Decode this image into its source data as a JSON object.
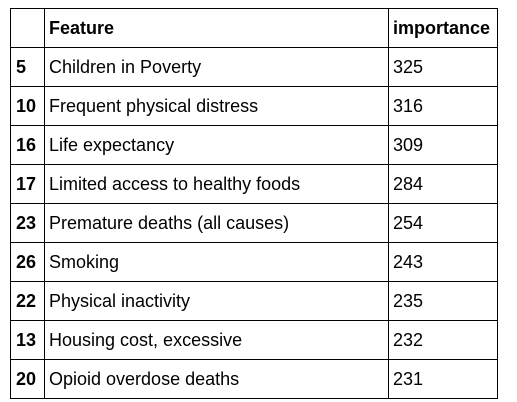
{
  "table": {
    "headers": {
      "index": "",
      "feature": "Feature",
      "importance": "importance"
    },
    "rows": [
      {
        "index": "5",
        "feature": "Children in Poverty",
        "importance": "325"
      },
      {
        "index": "10",
        "feature": "Frequent physical distress",
        "importance": "316"
      },
      {
        "index": "16",
        "feature": "Life expectancy",
        "importance": "309"
      },
      {
        "index": "17",
        "feature": "Limited access to healthy foods",
        "importance": "284"
      },
      {
        "index": "23",
        "feature": "Premature deaths (all causes)",
        "importance": "254"
      },
      {
        "index": "26",
        "feature": "Smoking",
        "importance": "243"
      },
      {
        "index": "22",
        "feature": "Physical inactivity",
        "importance": "235"
      },
      {
        "index": "13",
        "feature": "Housing cost, excessive",
        "importance": "232"
      },
      {
        "index": "20",
        "feature": "Opioid overdose deaths",
        "importance": "231"
      }
    ]
  }
}
